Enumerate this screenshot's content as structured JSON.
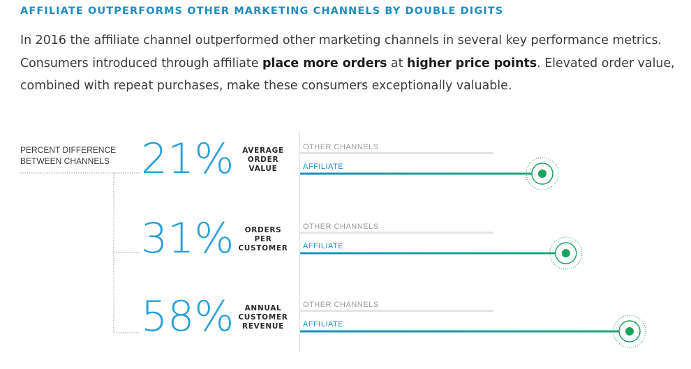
{
  "headline": "AFFILIATE OUTPERFORMS OTHER MARKETING CHANNELS BY DOUBLE DIGITS",
  "intro": {
    "segments": [
      {
        "text": "In 2016 the affiliate channel outperformed other marketing channels in several key performance metrics. Consumers introduced through affiliate ",
        "bold": false
      },
      {
        "text": "place more orders",
        "bold": true
      },
      {
        "text": " at ",
        "bold": false
      },
      {
        "text": "higher price points",
        "bold": true
      },
      {
        "text": ". Elevated order value, combined with repeat purchases, make these consumers exceptionally valuable.",
        "bold": false
      }
    ]
  },
  "side_label": [
    "PERCENT DIFFERENCE",
    "BETWEEN CHANNELS"
  ],
  "colors": {
    "headline": "#1d8cc2",
    "percent": "#2a9fd8",
    "baseline_bar": "#e3e3e3",
    "affiliate_start": "#1a8fc4",
    "affiliate_end": "#1aa873",
    "marker": "#1aa35d",
    "other_label": "#9a9a9a"
  },
  "chart_data": {
    "type": "bar",
    "title": "AFFILIATE OUTPERFORMS OTHER MARKETING CHANNELS BY DOUBLE DIGITS",
    "categories": [
      "AVERAGE ORDER VALUE",
      "ORDERS PER CUSTOMER",
      "ANNUAL CUSTOMER REVENUE"
    ],
    "series": [
      {
        "name": "OTHER CHANNELS",
        "values": [
          0,
          0,
          0
        ]
      },
      {
        "name": "AFFILIATE",
        "values": [
          21,
          31,
          58
        ]
      }
    ],
    "metrics": [
      {
        "percent": "21%",
        "label_lines": [
          "AVERAGE",
          "ORDER",
          "VALUE"
        ],
        "other_label": "OTHER CHANNELS",
        "affiliate_label": "AFFILIATE",
        "value": 21
      },
      {
        "percent": "31%",
        "label_lines": [
          "ORDERS",
          "PER",
          "CUSTOMER"
        ],
        "other_label": "OTHER CHANNELS",
        "affiliate_label": "AFFILIATE",
        "value": 31
      },
      {
        "percent": "58%",
        "label_lines": [
          "ANNUAL",
          "CUSTOMER",
          "REVENUE"
        ],
        "other_label": "OTHER CHANNELS",
        "affiliate_label": "AFFILIATE",
        "value": 58
      }
    ],
    "unit": "percent difference between channels",
    "grid": false
  }
}
